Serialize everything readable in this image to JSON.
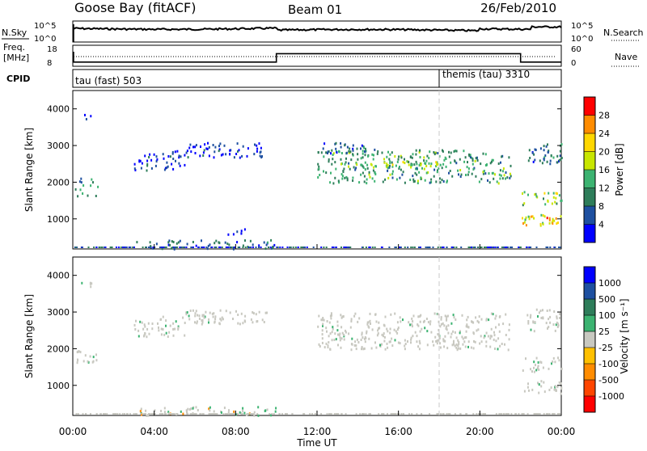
{
  "header": {
    "title": "Goose Bay (fitACF)",
    "beam": "Beam 01",
    "date": "26/Feb/2010"
  },
  "top_panel": {
    "nsky_label": "N.Sky",
    "nsearch_label": "N.Search",
    "left_ticks": [
      "10^5",
      "10^0"
    ],
    "right_ticks": [
      "10^5",
      "10^0"
    ]
  },
  "freq_panel": {
    "freq_label": "Freq.",
    "freq_unit": "[MHz]",
    "nave_label": "Nave",
    "left_ticks": [
      "18",
      "8"
    ],
    "right_ticks": [
      "60",
      "0"
    ]
  },
  "cpid_panel": {
    "label": "CPID",
    "program_1": "tau (fast) 503",
    "program_2": "themis (tau) 3310"
  },
  "power_panel": {
    "ylabel": "Slant Range [km]",
    "y_ticks": [
      "4000",
      "3000",
      "2000",
      "1000"
    ],
    "colorbar_label": "Power [dB]",
    "colorbar_ticks": [
      "28",
      "24",
      "20",
      "16",
      "12",
      "8",
      "4"
    ],
    "colorbar_colors": [
      "#0000ff",
      "#1e50a0",
      "#2e7d5a",
      "#3cb371",
      "#c8e600",
      "#ffd700",
      "#ff8c00",
      "#ff0000"
    ]
  },
  "velocity_panel": {
    "ylabel": "Slant Range [km]",
    "y_ticks": [
      "4000",
      "3000",
      "2000",
      "1000"
    ],
    "colorbar_label": "Velocity [m s⁻¹]",
    "colorbar_ticks": [
      "1000",
      "500",
      "100",
      "25",
      "-25",
      "-100",
      "-500",
      "-1000"
    ],
    "colorbar_colors": [
      "#ff0000",
      "#ff4500",
      "#ff8c00",
      "#ffc000",
      "#c8c8c0",
      "#3cb371",
      "#2e7d5a",
      "#1e50a0",
      "#0000ff"
    ]
  },
  "x_axis": {
    "label": "Time UT",
    "ticks": [
      "00:00",
      "04:00",
      "08:00",
      "12:00",
      "16:00",
      "20:00",
      "00:00"
    ]
  },
  "chart_data": {
    "type": "heatmap",
    "x_range_hours": [
      0,
      24
    ],
    "y_range_km": [
      180,
      4500
    ],
    "noise_markers_hours": [
      18
    ],
    "freq_steps": [
      {
        "start_h": 0,
        "end_h": 10,
        "freq_mhz": 10
      },
      {
        "start_h": 10,
        "end_h": 22,
        "freq_mhz": 14
      },
      {
        "start_h": 22,
        "end_h": 24,
        "freq_mhz": 10
      }
    ],
    "cpid_change_hour": 18,
    "power_regions": [
      {
        "t0": 0.1,
        "t1": 1.2,
        "r0": 1650,
        "r1": 1950,
        "level": 3
      },
      {
        "t0": 0.3,
        "t1": 1.4,
        "r0": 2000,
        "r1": 2200,
        "level": 2
      },
      {
        "t0": 0.4,
        "t1": 0.9,
        "r0": 3700,
        "r1": 3900,
        "level": 1
      },
      {
        "t0": 3.0,
        "t1": 5.5,
        "r0": 2350,
        "r1": 2900,
        "level": 1
      },
      {
        "t0": 5.5,
        "t1": 9.5,
        "r0": 2700,
        "r1": 3100,
        "level": 1
      },
      {
        "t0": 7.5,
        "t1": 8.5,
        "r0": 600,
        "r1": 750,
        "level": 1
      },
      {
        "t0": 3.0,
        "t1": 10.0,
        "r0": 200,
        "r1": 450,
        "level": 2
      },
      {
        "t0": 12.0,
        "t1": 21.5,
        "r0": 2000,
        "r1": 2900,
        "level": 3
      },
      {
        "t0": 13.0,
        "t1": 18.0,
        "r0": 2400,
        "r1": 2600,
        "level": 4
      },
      {
        "t0": 12.0,
        "t1": 15.0,
        "r0": 2800,
        "r1": 3100,
        "level": 2
      },
      {
        "t0": 22.0,
        "t1": 24.0,
        "r0": 1400,
        "r1": 1800,
        "level": 4
      },
      {
        "t0": 22.0,
        "t1": 24.0,
        "r0": 800,
        "r1": 1150,
        "level": 5
      },
      {
        "t0": 23.2,
        "t1": 24.0,
        "r0": 900,
        "r1": 1100,
        "level": 6
      },
      {
        "t0": 22.3,
        "t1": 24.0,
        "r0": 2500,
        "r1": 3100,
        "level": 2
      }
    ],
    "velocity_regions": [
      {
        "t0": 0.1,
        "t1": 1.2,
        "r0": 1650,
        "r1": 2000,
        "level": 4
      },
      {
        "t0": 0.4,
        "t1": 0.9,
        "r0": 3700,
        "r1": 3900,
        "level": 4
      },
      {
        "t0": 3.0,
        "t1": 5.5,
        "r0": 2350,
        "r1": 2900,
        "level": 4
      },
      {
        "t0": 5.5,
        "t1": 9.5,
        "r0": 2700,
        "r1": 3100,
        "level": 4
      },
      {
        "t0": 3.0,
        "t1": 10.0,
        "r0": 200,
        "r1": 450,
        "level": 5
      },
      {
        "t0": 12.0,
        "t1": 21.5,
        "r0": 2000,
        "r1": 3000,
        "level": 4
      },
      {
        "t0": 22.0,
        "t1": 24.0,
        "r0": 1400,
        "r1": 1800,
        "level": 4
      },
      {
        "t0": 22.0,
        "t1": 24.0,
        "r0": 800,
        "r1": 1150,
        "level": 4
      },
      {
        "t0": 22.3,
        "t1": 24.0,
        "r0": 2500,
        "r1": 3100,
        "level": 4
      }
    ]
  }
}
